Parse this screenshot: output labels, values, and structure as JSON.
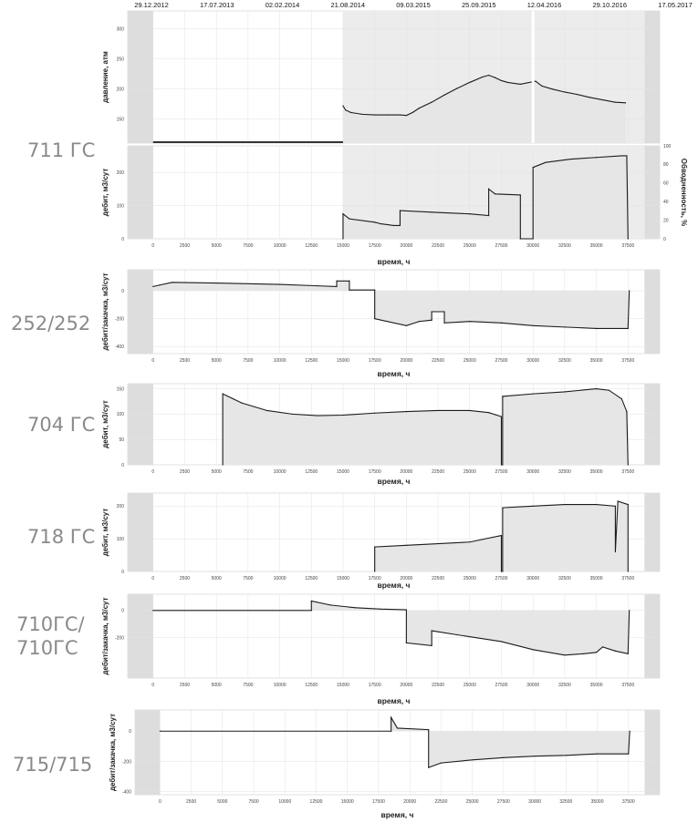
{
  "dates": [
    "29.12.2012",
    "17.07.2013",
    "02.02.2014",
    "21.08.2014",
    "09.03.2015",
    "25.09.2015",
    "12.04.2016",
    "29.10.2016",
    "17.05.2017"
  ],
  "x_ticks": [
    0,
    2500,
    5000,
    7500,
    10000,
    12500,
    15000,
    17500,
    20000,
    22500,
    25000,
    27500,
    30000,
    32500,
    35000,
    37500
  ],
  "xlabel": "время, ч",
  "chart_data": [
    {
      "type": "line",
      "well_label": "711 ГС",
      "ylabel": "давление, атм",
      "x_range": [
        -2000,
        40000
      ],
      "y_range": [
        110,
        330
      ],
      "y_ticks": [
        150,
        200,
        250,
        300
      ],
      "shade_from": 15000,
      "series": [
        {
          "values": [
            [
              15000,
              172
            ],
            [
              15200,
              165
            ],
            [
              15600,
              161
            ],
            [
              16500,
              158
            ],
            [
              17500,
              157
            ],
            [
              18500,
              157
            ],
            [
              19500,
              157
            ],
            [
              20000,
              156
            ],
            [
              20500,
              161
            ],
            [
              21000,
              168
            ],
            [
              22000,
              178
            ],
            [
              23000,
              190
            ],
            [
              24000,
              201
            ],
            [
              25000,
              211
            ],
            [
              26000,
              220
            ],
            [
              26500,
              223
            ],
            [
              27000,
              219
            ],
            [
              27500,
              214
            ],
            [
              28000,
              211
            ],
            [
              29000,
              208
            ],
            [
              30200,
              213
            ],
            [
              30700,
              205
            ],
            [
              31500,
              200
            ],
            [
              32500,
              195
            ],
            [
              33500,
              191
            ],
            [
              34500,
              186
            ],
            [
              35500,
              182
            ],
            [
              36500,
              178
            ],
            [
              37300,
              177
            ]
          ]
        }
      ]
    },
    {
      "type": "line",
      "well_label": "",
      "ylabel": "дебит, м3/сут",
      "y2label": "Обводненность, %",
      "x_range": [
        -2000,
        40000
      ],
      "y_range": [
        0,
        280
      ],
      "y_ticks": [
        0,
        100,
        200
      ],
      "y2_range": [
        0,
        100
      ],
      "y2_ticks": [
        0,
        20,
        40,
        60,
        80,
        100
      ],
      "shade_from": 15000,
      "series": [
        {
          "values": [
            [
              15000,
              0
            ],
            [
              15000,
              75
            ],
            [
              15500,
              60
            ],
            [
              17500,
              50
            ],
            [
              18000,
              45
            ],
            [
              19000,
              40
            ],
            [
              19500,
              40
            ],
            [
              19500,
              85
            ],
            [
              22000,
              80
            ],
            [
              25000,
              75
            ],
            [
              26500,
              70
            ],
            [
              26500,
              150
            ],
            [
              27000,
              135
            ],
            [
              29000,
              132
            ],
            [
              29000,
              0
            ],
            [
              30000,
              0
            ],
            [
              30000,
              215
            ],
            [
              31000,
              230
            ],
            [
              33000,
              240
            ],
            [
              35000,
              245
            ],
            [
              37000,
              250
            ],
            [
              37400,
              250
            ],
            [
              37500,
              0
            ]
          ]
        }
      ]
    },
    {
      "type": "line",
      "well_label": "252/252",
      "ylabel": "дебит/закачка, м3/сут",
      "x_range": [
        -2000,
        40000
      ],
      "y_range": [
        -450,
        150
      ],
      "y_ticks": [
        -400,
        -200,
        0
      ],
      "shade_from": -2000,
      "series": [
        {
          "values": [
            [
              0,
              30
            ],
            [
              500,
              40
            ],
            [
              1500,
              60
            ],
            [
              5000,
              55
            ],
            [
              10000,
              45
            ],
            [
              13000,
              35
            ],
            [
              14500,
              30
            ],
            [
              14500,
              70
            ],
            [
              15500,
              70
            ],
            [
              15500,
              5
            ],
            [
              17500,
              5
            ],
            [
              17500,
              -200
            ],
            [
              20000,
              -250
            ],
            [
              21000,
              -220
            ],
            [
              22000,
              -210
            ],
            [
              22000,
              -150
            ],
            [
              23000,
              -150
            ],
            [
              23000,
              -230
            ],
            [
              25000,
              -220
            ],
            [
              27500,
              -230
            ],
            [
              30000,
              -250
            ],
            [
              32500,
              -260
            ],
            [
              35000,
              -270
            ],
            [
              37500,
              -270
            ],
            [
              37600,
              0
            ]
          ]
        }
      ]
    },
    {
      "type": "line",
      "well_label": "704 ГС",
      "ylabel": "дебит, м3/сут",
      "x_range": [
        -2000,
        40000
      ],
      "y_range": [
        0,
        160
      ],
      "y_ticks": [
        0,
        50,
        100,
        150
      ],
      "shade_from": -2000,
      "series": [
        {
          "values": [
            [
              5500,
              0
            ],
            [
              5500,
              140
            ],
            [
              7000,
              122
            ],
            [
              9000,
              107
            ],
            [
              11000,
              100
            ],
            [
              13000,
              97
            ],
            [
              15000,
              98
            ],
            [
              17500,
              102
            ],
            [
              20000,
              105
            ],
            [
              22500,
              107
            ],
            [
              25000,
              107
            ],
            [
              26500,
              103
            ],
            [
              27500,
              95
            ],
            [
              27500,
              0
            ],
            [
              27600,
              0
            ],
            [
              27600,
              135
            ],
            [
              30000,
              140
            ],
            [
              32500,
              144
            ],
            [
              35000,
              150
            ],
            [
              36000,
              147
            ],
            [
              37000,
              130
            ],
            [
              37400,
              105
            ],
            [
              37500,
              0
            ]
          ]
        }
      ]
    },
    {
      "type": "line",
      "well_label": "718 ГС",
      "ylabel": "дебит, м3/сут",
      "x_range": [
        -2000,
        40000
      ],
      "y_range": [
        0,
        240
      ],
      "y_ticks": [
        0,
        100,
        200
      ],
      "shade_from": -2000,
      "series": [
        {
          "values": [
            [
              17500,
              0
            ],
            [
              17500,
              75
            ],
            [
              20000,
              80
            ],
            [
              22500,
              85
            ],
            [
              25000,
              90
            ],
            [
              27500,
              110
            ],
            [
              27500,
              0
            ],
            [
              27600,
              0
            ],
            [
              27600,
              195
            ],
            [
              30000,
              200
            ],
            [
              32500,
              205
            ],
            [
              35000,
              205
            ],
            [
              36500,
              200
            ],
            [
              36500,
              60
            ],
            [
              36700,
              215
            ],
            [
              37500,
              205
            ],
            [
              37500,
              0
            ]
          ]
        }
      ]
    },
    {
      "type": "line",
      "well_label": "710ГС/\n710ГС",
      "ylabel": "дебит/закачка, м3/сут",
      "x_range": [
        -2000,
        40000
      ],
      "y_range": [
        -500,
        120
      ],
      "y_ticks": [
        -200,
        0
      ],
      "shade_from": -2000,
      "series": [
        {
          "values": [
            [
              0,
              0
            ],
            [
              12500,
              0
            ],
            [
              12500,
              70
            ],
            [
              14000,
              40
            ],
            [
              16000,
              20
            ],
            [
              18000,
              10
            ],
            [
              20000,
              5
            ],
            [
              20000,
              -240
            ],
            [
              22000,
              -260
            ],
            [
              22000,
              -150
            ],
            [
              24000,
              -180
            ],
            [
              27500,
              -230
            ],
            [
              30000,
              -290
            ],
            [
              32500,
              -330
            ],
            [
              34000,
              -320
            ],
            [
              35000,
              -310
            ],
            [
              35500,
              -270
            ],
            [
              36500,
              -300
            ],
            [
              37500,
              -320
            ],
            [
              37600,
              0
            ]
          ]
        }
      ]
    },
    {
      "type": "line",
      "well_label": "715/715",
      "ylabel": "дебит/закачка, м3/сут",
      "x_range": [
        -2000,
        40000
      ],
      "y_range": [
        -420,
        140
      ],
      "y_ticks": [
        -400,
        -200,
        0
      ],
      "shade_from": -2000,
      "series": [
        {
          "values": [
            [
              0,
              0
            ],
            [
              18500,
              0
            ],
            [
              18500,
              90
            ],
            [
              19000,
              20
            ],
            [
              21500,
              10
            ],
            [
              21500,
              -240
            ],
            [
              22500,
              -210
            ],
            [
              25000,
              -190
            ],
            [
              27500,
              -175
            ],
            [
              30000,
              -165
            ],
            [
              32500,
              -160
            ],
            [
              35000,
              -150
            ],
            [
              37500,
              -150
            ],
            [
              37600,
              0
            ]
          ]
        }
      ]
    }
  ]
}
